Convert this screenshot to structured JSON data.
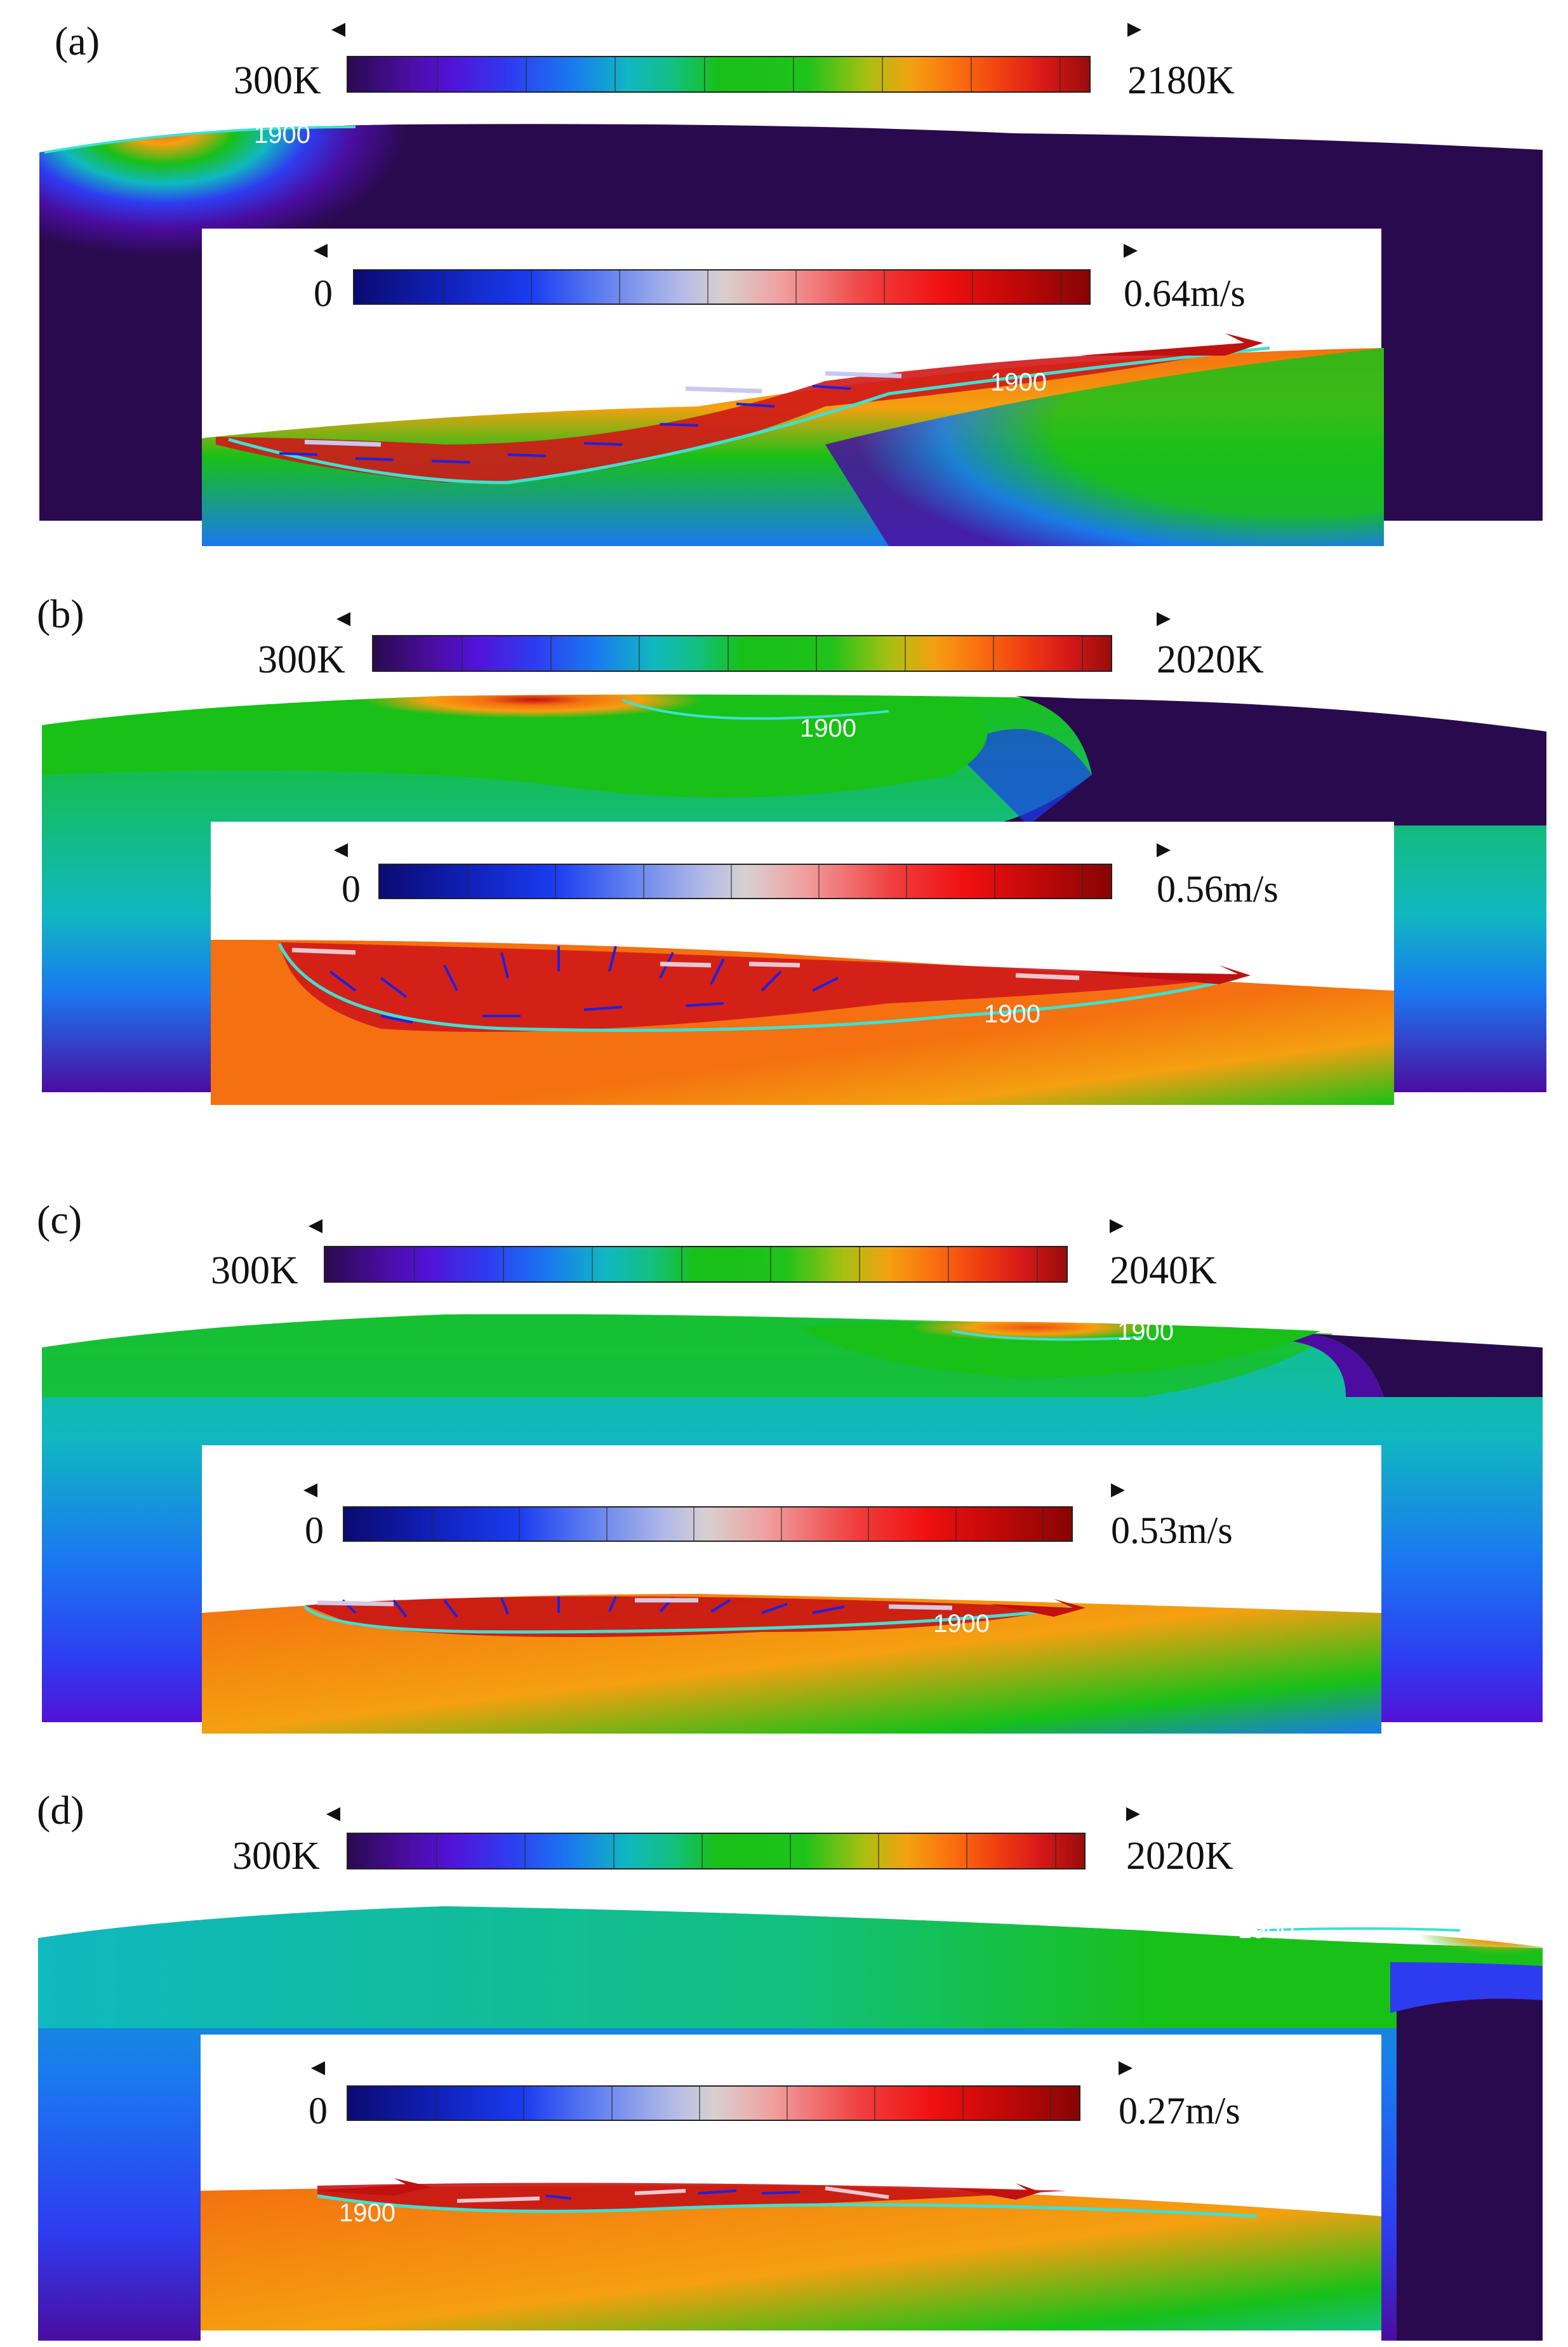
{
  "panels": [
    {
      "label": "(a)",
      "temp_min": "300K",
      "temp_max": "2180K",
      "vel_min": "0",
      "vel_max": "0.64m/s",
      "contour_label_top": "1900",
      "contour_label_inset": "1900"
    },
    {
      "label": "(b)",
      "temp_min": "300K",
      "temp_max": "2020K",
      "vel_min": "0",
      "vel_max": "0.56m/s",
      "contour_label_top": "1900",
      "contour_label_inset": "1900"
    },
    {
      "label": "(c)",
      "temp_min": "300K",
      "temp_max": "2040K",
      "vel_min": "0",
      "vel_max": "0.53m/s",
      "contour_label_top": "1900",
      "contour_label_inset": "1900"
    },
    {
      "label": "(d)",
      "temp_min": "300K",
      "temp_max": "2020K",
      "vel_min": "0",
      "vel_max": "0.27m/s",
      "contour_label_top": "1900",
      "contour_label_inset": "1900"
    }
  ],
  "colors": {
    "contour": "#40e0d0",
    "temp_low": "#2a0a4e",
    "temp_mid": "#18c018",
    "temp_high": "#9a0c0c",
    "vel_low": "#0a0a70",
    "vel_high": "#880404"
  }
}
